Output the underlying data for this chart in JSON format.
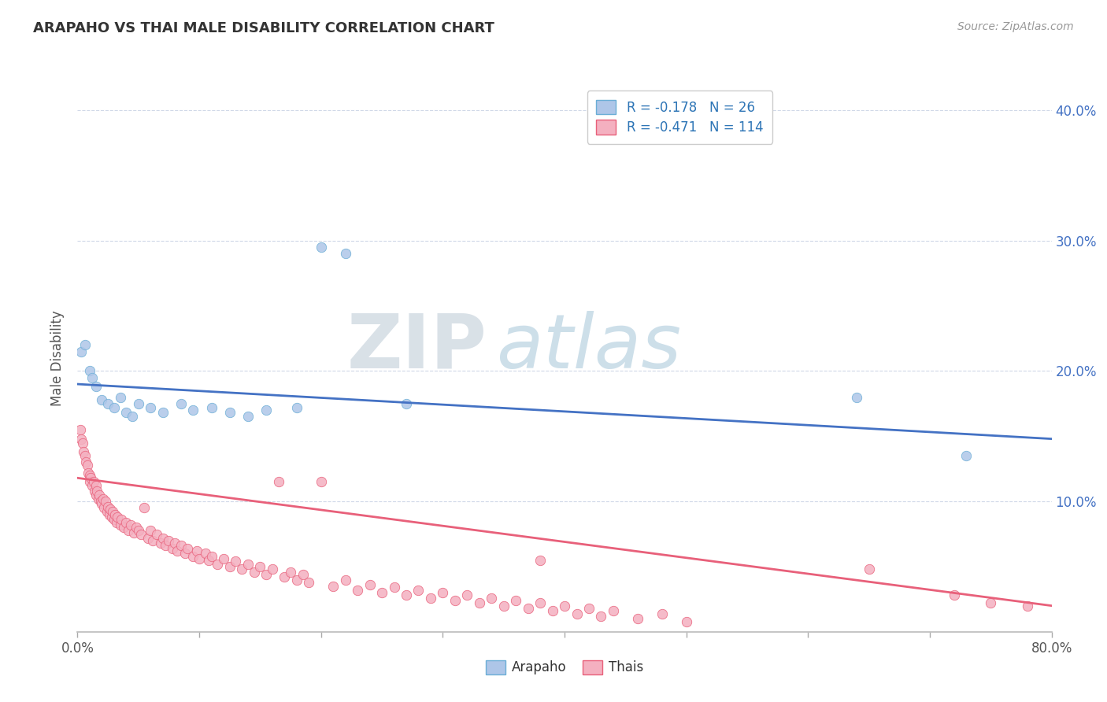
{
  "title": "ARAPAHO VS THAI MALE DISABILITY CORRELATION CHART",
  "source_text": "Source: ZipAtlas.com",
  "ylabel": "Male Disability",
  "xlim": [
    0.0,
    0.8
  ],
  "ylim": [
    0.0,
    0.42
  ],
  "xticks": [
    0.0,
    0.1,
    0.2,
    0.3,
    0.4,
    0.5,
    0.6,
    0.7,
    0.8
  ],
  "xticklabels_ends": [
    "0.0%",
    "",
    "",
    "",
    "",
    "",
    "",
    "",
    "80.0%"
  ],
  "right_yticks": [
    0.1,
    0.2,
    0.3,
    0.4
  ],
  "right_yticklabels": [
    "10.0%",
    "20.0%",
    "30.0%",
    "40.0%"
  ],
  "arapaho_color": "#aec6e8",
  "thais_color": "#f4b0c0",
  "arapaho_edge_color": "#6baed6",
  "thais_edge_color": "#e8607a",
  "arapaho_line_color": "#4472c4",
  "thais_line_color": "#e8607a",
  "arapaho_R": -0.178,
  "arapaho_N": 26,
  "thais_R": -0.471,
  "thais_N": 114,
  "legend_color": "#2e75b6",
  "watermark_zip": "ZIP",
  "watermark_atlas": "atlas",
  "watermark_zip_color": "#c8d4e0",
  "watermark_atlas_color": "#a8c4d8",
  "background_color": "#ffffff",
  "grid_color": "#d0d8e8",
  "arapaho_scatter_x": [
    0.003,
    0.006,
    0.01,
    0.012,
    0.015,
    0.02,
    0.025,
    0.03,
    0.035,
    0.04,
    0.045,
    0.05,
    0.06,
    0.07,
    0.085,
    0.095,
    0.11,
    0.125,
    0.14,
    0.155,
    0.18,
    0.2,
    0.22,
    0.27,
    0.64,
    0.73
  ],
  "arapaho_scatter_y": [
    0.215,
    0.22,
    0.2,
    0.195,
    0.188,
    0.178,
    0.175,
    0.172,
    0.18,
    0.168,
    0.165,
    0.175,
    0.172,
    0.168,
    0.175,
    0.17,
    0.172,
    0.168,
    0.165,
    0.17,
    0.172,
    0.295,
    0.29,
    0.175,
    0.18,
    0.135
  ],
  "thais_scatter_x": [
    0.002,
    0.003,
    0.004,
    0.005,
    0.006,
    0.007,
    0.008,
    0.009,
    0.01,
    0.01,
    0.011,
    0.012,
    0.013,
    0.014,
    0.015,
    0.015,
    0.016,
    0.017,
    0.018,
    0.019,
    0.02,
    0.021,
    0.022,
    0.023,
    0.024,
    0.025,
    0.026,
    0.027,
    0.028,
    0.029,
    0.03,
    0.031,
    0.032,
    0.033,
    0.035,
    0.036,
    0.038,
    0.04,
    0.042,
    0.044,
    0.046,
    0.048,
    0.05,
    0.052,
    0.055,
    0.058,
    0.06,
    0.062,
    0.065,
    0.068,
    0.07,
    0.072,
    0.075,
    0.078,
    0.08,
    0.082,
    0.085,
    0.088,
    0.09,
    0.095,
    0.098,
    0.1,
    0.105,
    0.108,
    0.11,
    0.115,
    0.12,
    0.125,
    0.13,
    0.135,
    0.14,
    0.145,
    0.15,
    0.155,
    0.16,
    0.165,
    0.17,
    0.175,
    0.18,
    0.185,
    0.19,
    0.2,
    0.21,
    0.22,
    0.23,
    0.24,
    0.25,
    0.26,
    0.27,
    0.28,
    0.29,
    0.3,
    0.31,
    0.32,
    0.33,
    0.34,
    0.35,
    0.36,
    0.37,
    0.38,
    0.39,
    0.4,
    0.41,
    0.42,
    0.43,
    0.44,
    0.46,
    0.48,
    0.5,
    0.38,
    0.65,
    0.72,
    0.75,
    0.78
  ],
  "thais_scatter_y": [
    0.155,
    0.148,
    0.145,
    0.138,
    0.135,
    0.13,
    0.128,
    0.122,
    0.12,
    0.115,
    0.118,
    0.112,
    0.115,
    0.108,
    0.112,
    0.105,
    0.108,
    0.102,
    0.105,
    0.1,
    0.098,
    0.102,
    0.095,
    0.1,
    0.092,
    0.096,
    0.09,
    0.094,
    0.088,
    0.092,
    0.086,
    0.09,
    0.084,
    0.088,
    0.082,
    0.086,
    0.08,
    0.084,
    0.078,
    0.082,
    0.076,
    0.08,
    0.078,
    0.075,
    0.095,
    0.072,
    0.078,
    0.07,
    0.075,
    0.068,
    0.072,
    0.066,
    0.07,
    0.064,
    0.068,
    0.062,
    0.066,
    0.06,
    0.064,
    0.058,
    0.062,
    0.056,
    0.06,
    0.055,
    0.058,
    0.052,
    0.056,
    0.05,
    0.054,
    0.048,
    0.052,
    0.046,
    0.05,
    0.044,
    0.048,
    0.115,
    0.042,
    0.046,
    0.04,
    0.044,
    0.038,
    0.115,
    0.035,
    0.04,
    0.032,
    0.036,
    0.03,
    0.034,
    0.028,
    0.032,
    0.026,
    0.03,
    0.024,
    0.028,
    0.022,
    0.026,
    0.02,
    0.024,
    0.018,
    0.022,
    0.016,
    0.02,
    0.014,
    0.018,
    0.012,
    0.016,
    0.01,
    0.014,
    0.008,
    0.055,
    0.048,
    0.028,
    0.022,
    0.02
  ],
  "arapaho_trend_x0": 0.0,
  "arapaho_trend_x1": 0.8,
  "arapaho_trend_y0": 0.19,
  "arapaho_trend_y1": 0.148,
  "thais_trend_x0": 0.0,
  "thais_trend_x1": 0.8,
  "thais_trend_y0": 0.118,
  "thais_trend_y1": 0.02
}
